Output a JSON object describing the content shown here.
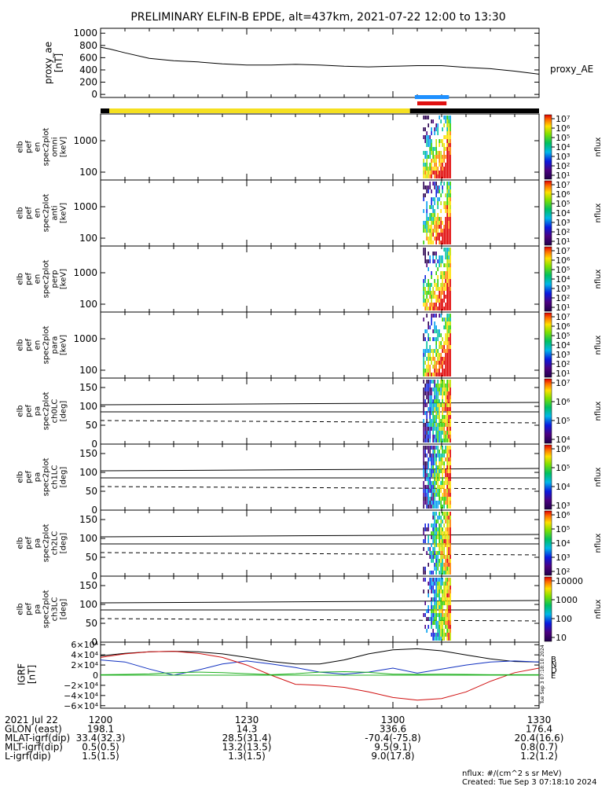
{
  "title": "PRELIMINARY ELFIN-B EPDE, alt=437km, 2021-07-22 12:00 to 13:30",
  "colors": {
    "ae_line": "#000000",
    "bar_black": "#000000",
    "bar_yellow": "#f5e020",
    "bar_blue": "#1e90ff",
    "bar_red": "#e01010",
    "igrf_b": "#000000",
    "igrf_n": "#1030c0",
    "igrf_e": "#20b020",
    "igrf_d": "#d01010"
  },
  "chart_data": [
    {
      "type": "line",
      "panel": "proxy_ae",
      "ylabel_lines": [
        "proxy_ae",
        "[nT]"
      ],
      "series_label": "proxy_AE",
      "ylim": [
        -50,
        1080
      ],
      "yticks": [
        "1000",
        "800",
        "600",
        "400",
        "200",
        "0"
      ],
      "ytick_values": [
        1000,
        800,
        600,
        400,
        200,
        0
      ],
      "x_minutes": [
        0,
        2,
        5,
        10,
        15,
        20,
        25,
        30,
        35,
        40,
        45,
        50,
        55,
        60,
        65,
        70,
        75,
        80,
        85,
        90
      ],
      "values": [
        770,
        740,
        680,
        590,
        550,
        530,
        500,
        480,
        480,
        490,
        480,
        460,
        450,
        460,
        470,
        470,
        440,
        420,
        380,
        330
      ]
    },
    {
      "type": "bar",
      "panel": "region_bar",
      "segments": [
        {
          "from": 0,
          "to": 1.8,
          "color": "black"
        },
        {
          "from": 1.8,
          "to": 63.5,
          "color": "yellow"
        },
        {
          "from": 63.5,
          "to": 90,
          "color": "black"
        }
      ],
      "markers": [
        {
          "from": 64.5,
          "to": 71.5,
          "color": "blue"
        },
        {
          "from": 65.0,
          "to": 71.0,
          "color": "red"
        }
      ]
    },
    {
      "type": "heatmap",
      "panels": [
        {
          "name": "spec-omni",
          "ylabel_lines": [
            "elb",
            "pef",
            "en",
            "spec2plot",
            "omni",
            "[keV]"
          ],
          "yticks": [
            "1000",
            "100"
          ],
          "cb_label": "nflux",
          "cb_ticks": [
            "10⁷",
            "10⁶",
            "10⁵",
            "10⁴",
            "10³",
            "10²",
            "10¹"
          ],
          "kind": "energy"
        },
        {
          "name": "spec-anti",
          "ylabel_lines": [
            "elb",
            "pef",
            "en",
            "spec2plot",
            "anti",
            "[keV]"
          ],
          "yticks": [
            "1000",
            "100"
          ],
          "cb_label": "nflux",
          "cb_ticks": [
            "10⁷",
            "10⁶",
            "10⁵",
            "10⁴",
            "10³",
            "10²",
            "10¹"
          ],
          "kind": "energy"
        },
        {
          "name": "spec-perp",
          "ylabel_lines": [
            "elb",
            "pef",
            "en",
            "spec2plot",
            "perp",
            "[keV]"
          ],
          "yticks": [
            "1000",
            "100"
          ],
          "cb_label": "nflux",
          "cb_ticks": [
            "10⁷",
            "10⁶",
            "10⁵",
            "10⁴",
            "10³",
            "10²",
            "10¹"
          ],
          "kind": "energy"
        },
        {
          "name": "spec-para",
          "ylabel_lines": [
            "elb",
            "pef",
            "en",
            "spec2plot",
            "para",
            "[keV]"
          ],
          "yticks": [
            "1000",
            "100"
          ],
          "cb_label": "nflux",
          "cb_ticks": [
            "10⁷",
            "10⁶",
            "10⁵",
            "10⁴",
            "10³",
            "10²",
            "10¹"
          ],
          "kind": "energy"
        },
        {
          "name": "pa-ch0",
          "ylabel_lines": [
            "elb",
            "pef",
            "pa",
            "spec2plot",
            "ch0LC",
            "[deg]"
          ],
          "yticks": [
            "150",
            "100",
            "50",
            "0"
          ],
          "cb_label": "nflux",
          "cb_ticks": [
            "10⁷",
            "10⁶",
            "10⁵",
            "10⁴"
          ],
          "kind": "pitch"
        },
        {
          "name": "pa-ch1",
          "ylabel_lines": [
            "elb",
            "pef",
            "pa",
            "spec2plot",
            "ch1LC",
            "[deg]"
          ],
          "yticks": [
            "150",
            "100",
            "50",
            "0"
          ],
          "cb_label": "nflux",
          "cb_ticks": [
            "10⁶",
            "10⁵",
            "10⁴",
            "10³"
          ],
          "kind": "pitch"
        },
        {
          "name": "pa-ch2",
          "ylabel_lines": [
            "elb",
            "pef",
            "pa",
            "spec2plot",
            "ch2LC",
            "[deg]"
          ],
          "yticks": [
            "150",
            "100",
            "50",
            "0"
          ],
          "cb_label": "nflux",
          "cb_ticks": [
            "10⁶",
            "10⁵",
            "10⁴",
            "10³",
            "10²"
          ],
          "kind": "pitch"
        },
        {
          "name": "pa-ch3",
          "ylabel_lines": [
            "elb",
            "pef",
            "pa",
            "spec2plot",
            "ch3LC",
            "[deg]"
          ],
          "yticks": [
            "150",
            "100",
            "50",
            "0"
          ],
          "cb_label": "nflux",
          "cb_ticks": [
            "10000",
            "1000",
            "100",
            "10"
          ],
          "kind": "pitch"
        }
      ]
    },
    {
      "type": "line",
      "panel": "igrf",
      "ylabel_lines": [
        "IGRF",
        "[nT]"
      ],
      "ylim": [
        -65000,
        65000
      ],
      "yticks": [
        "6×10⁴",
        "4×10⁴",
        "2×10⁴",
        "0",
        "−2×10⁴",
        "−4×10⁴",
        "−6×10⁴"
      ],
      "ytick_values": [
        60000,
        40000,
        20000,
        0,
        -20000,
        -40000,
        -60000
      ],
      "legend": [
        "B",
        "N",
        "D",
        "E"
      ],
      "x_minutes": [
        0,
        5,
        10,
        15,
        20,
        25,
        30,
        35,
        40,
        45,
        50,
        55,
        60,
        65,
        70,
        75,
        80,
        85,
        90
      ],
      "series": [
        {
          "name": "B",
          "values": [
            38000,
            43000,
            46000,
            47000,
            46000,
            42000,
            35000,
            27000,
            22000,
            22000,
            30000,
            42000,
            50000,
            52000,
            48000,
            40000,
            32000,
            27000,
            26000
          ]
        },
        {
          "name": "N",
          "values": [
            30000,
            26000,
            12000,
            0,
            10000,
            22000,
            28000,
            22000,
            15000,
            6000,
            2000,
            6000,
            14000,
            4000,
            12000,
            20000,
            26000,
            28000,
            26000
          ]
        },
        {
          "name": "D",
          "values": [
            35000,
            42000,
            46000,
            47000,
            43000,
            35000,
            20000,
            0,
            -18000,
            -20000,
            -24000,
            -33000,
            -44000,
            -49000,
            -46000,
            -33000,
            -12000,
            5000,
            14000
          ]
        },
        {
          "name": "E",
          "values": [
            1000,
            1500,
            2500,
            5000,
            6000,
            5000,
            3000,
            1000,
            3000,
            6000,
            7000,
            5500,
            2000,
            1500,
            2000,
            1500,
            1000,
            1000,
            1000
          ]
        }
      ],
      "side_label": "Tue Sep  3 07:18:10 2024"
    }
  ],
  "xaxis": {
    "ticks": [
      {
        "minute": 0,
        "label": "1200"
      },
      {
        "minute": 30,
        "label": "1230"
      },
      {
        "minute": 60,
        "label": "1300"
      },
      {
        "minute": 90,
        "label": "1330"
      }
    ],
    "rows": [
      {
        "name": "2021 Jul 22",
        "values": [
          "1200",
          "1230",
          "1300",
          "1330"
        ]
      },
      {
        "name": "GLON (east)",
        "values": [
          "198.1",
          "14.3",
          "336.6",
          "176.4"
        ]
      },
      {
        "name": "MLAT-igrf(dip)",
        "values": [
          "33.4(32.3)",
          "28.5(31.4)",
          "-70.4(-75.8)",
          "20.4(16.6)"
        ]
      },
      {
        "name": "MLT-igrf(dip)",
        "values": [
          "0.5(0.5)",
          "13.2(13.5)",
          "9.5(9.1)",
          "0.8(0.7)"
        ]
      },
      {
        "name": "L-igrf(dip)",
        "values": [
          "1.5(1.5)",
          "1.3(1.5)",
          "9.0(17.8)",
          "1.2(1.2)"
        ]
      }
    ]
  },
  "footer": {
    "units": "nflux: #/(cm^2 s sr MeV)",
    "created": "Created: Tue Sep  3 07:18:10 2024"
  }
}
